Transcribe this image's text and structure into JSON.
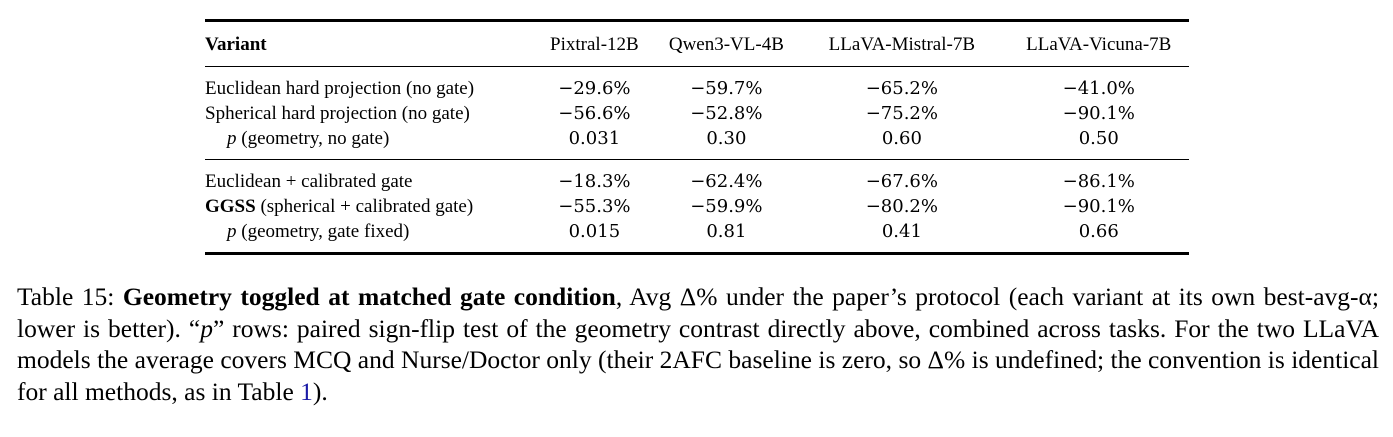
{
  "table": {
    "header": {
      "variant": "Variant",
      "models": [
        "Pixtral-12B",
        "Qwen3-VL-4B",
        "LLaVA-Mistral-7B",
        "LLaVA-Vicuna-7B"
      ]
    },
    "group1": [
      {
        "variant": "Euclidean hard projection (no gate)",
        "values": [
          "−29.6%",
          "−59.7%",
          "−65.2%",
          "−41.0%"
        ]
      },
      {
        "variant": "Spherical hard projection (no gate)",
        "values": [
          "−56.6%",
          "−52.8%",
          "−75.2%",
          "−90.1%"
        ]
      },
      {
        "variant_p": "p",
        "variant_rest": " (geometry, no gate)",
        "values": [
          "0.031",
          "0.30",
          "0.60",
          "0.50"
        ]
      }
    ],
    "group2": [
      {
        "variant": "Euclidean + calibrated gate",
        "values": [
          "−18.3%",
          "−62.4%",
          "−67.6%",
          "−86.1%"
        ]
      },
      {
        "variant_bold": "GGSS",
        "variant_rest": " (spherical + calibrated gate)",
        "values": [
          "−55.3%",
          "−59.9%",
          "−80.2%",
          "−90.1%"
        ]
      },
      {
        "variant_p": "p",
        "variant_rest": " (geometry, gate fixed)",
        "values": [
          "0.015",
          "0.81",
          "0.41",
          "0.66"
        ]
      }
    ]
  },
  "caption": {
    "label": "Table 15: ",
    "title": "Geometry toggled at matched gate condition",
    "text_1": ", Avg Δ% under the paper’s protocol (each variant at its own best-avg-α; lower is better). “",
    "p": "p",
    "text_2": "” rows: paired sign-flip test of the geometry contrast directly above, combined across tasks. For the two LLaVA models the average covers MCQ and Nurse/Doctor only (their 2AFC baseline is zero, so Δ% is undefined; the convention is identical for all methods, as in Table ",
    "ref": "1",
    "text_3": ")."
  }
}
